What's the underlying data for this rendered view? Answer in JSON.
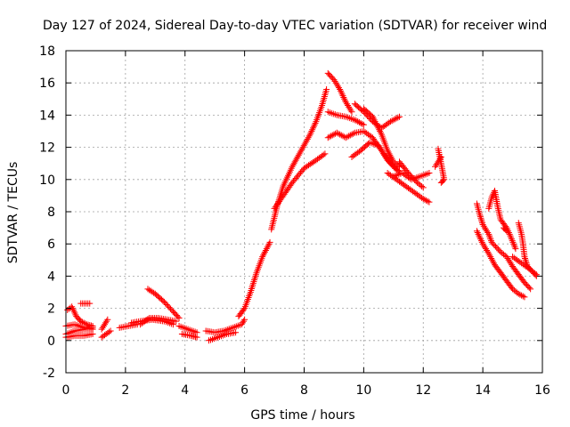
{
  "chart_data": {
    "type": "scatter",
    "title": "Day 127 of 2024, Sidereal Day-to-day VTEC variation (SDTVAR) for receiver wind",
    "xlabel": "GPS time / hours",
    "ylabel": "SDTVAR / TECUs",
    "xlim": [
      0,
      16
    ],
    "ylim": [
      -2,
      18
    ],
    "xticks": [
      "0",
      "2",
      "4",
      "6",
      "8",
      "10",
      "12",
      "14",
      "16"
    ],
    "yticks": [
      "-2",
      "0",
      "2",
      "4",
      "6",
      "8",
      "10",
      "12",
      "14",
      "16",
      "18"
    ],
    "grid": true,
    "marker": "+",
    "series": [
      {
        "name": "SDTVAR",
        "color": "#ff0000",
        "tracks": [
          [
            [
              0.0,
              0.4
            ],
            [
              0.3,
              0.6
            ],
            [
              0.6,
              0.7
            ],
            [
              0.9,
              0.8
            ]
          ],
          [
            [
              0.0,
              0.2
            ],
            [
              0.3,
              0.3
            ],
            [
              0.6,
              0.3
            ],
            [
              0.9,
              0.4
            ]
          ],
          [
            [
              0.0,
              0.9
            ],
            [
              0.3,
              1.0
            ],
            [
              0.6,
              0.8
            ],
            [
              0.9,
              0.7
            ]
          ],
          [
            [
              0.05,
              1.9
            ],
            [
              0.2,
              2.1
            ],
            [
              0.35,
              1.5
            ],
            [
              0.5,
              1.2
            ],
            [
              0.7,
              1.0
            ],
            [
              0.9,
              0.9
            ]
          ],
          [
            [
              0.5,
              2.3
            ],
            [
              0.8,
              2.3
            ]
          ],
          [
            [
              1.2,
              0.7
            ],
            [
              1.3,
              1.0
            ],
            [
              1.4,
              1.3
            ]
          ],
          [
            [
              1.2,
              0.2
            ],
            [
              1.35,
              0.4
            ],
            [
              1.5,
              0.6
            ]
          ],
          [
            [
              1.8,
              0.8
            ],
            [
              2.1,
              0.9
            ],
            [
              2.4,
              1.0
            ]
          ],
          [
            [
              2.2,
              1.1
            ],
            [
              2.5,
              1.2
            ],
            [
              2.9,
              1.3
            ],
            [
              3.3,
              1.2
            ],
            [
              3.6,
              1.0
            ]
          ],
          [
            [
              2.5,
              1.0
            ],
            [
              2.8,
              1.4
            ],
            [
              3.1,
              1.4
            ],
            [
              3.4,
              1.3
            ],
            [
              3.7,
              1.2
            ]
          ],
          [
            [
              2.75,
              3.2
            ],
            [
              3.0,
              2.9
            ],
            [
              3.3,
              2.4
            ],
            [
              3.6,
              1.8
            ],
            [
              3.8,
              1.4
            ]
          ],
          [
            [
              3.8,
              0.9
            ],
            [
              4.1,
              0.7
            ],
            [
              4.4,
              0.5
            ]
          ],
          [
            [
              3.9,
              0.4
            ],
            [
              4.2,
              0.3
            ],
            [
              4.4,
              0.2
            ]
          ],
          [
            [
              4.7,
              0.6
            ],
            [
              5.0,
              0.5
            ],
            [
              5.3,
              0.6
            ],
            [
              5.6,
              0.8
            ],
            [
              5.9,
              1.0
            ],
            [
              6.0,
              1.3
            ]
          ],
          [
            [
              4.8,
              0.0
            ],
            [
              5.1,
              0.2
            ],
            [
              5.4,
              0.4
            ],
            [
              5.7,
              0.5
            ]
          ],
          [
            [
              5.8,
              1.5
            ],
            [
              6.0,
              2.0
            ],
            [
              6.2,
              3.0
            ],
            [
              6.4,
              4.2
            ],
            [
              6.6,
              5.2
            ],
            [
              6.85,
              6.1
            ]
          ],
          [
            [
              6.9,
              6.9
            ],
            [
              7.1,
              8.4
            ],
            [
              7.3,
              9.6
            ],
            [
              7.6,
              10.8
            ],
            [
              7.9,
              11.8
            ],
            [
              8.2,
              12.8
            ],
            [
              8.4,
              13.6
            ],
            [
              8.6,
              14.6
            ],
            [
              8.75,
              15.6
            ]
          ],
          [
            [
              7.0,
              8.2
            ],
            [
              7.3,
              9.0
            ],
            [
              7.6,
              9.8
            ],
            [
              8.0,
              10.7
            ],
            [
              8.4,
              11.2
            ],
            [
              8.7,
              11.6
            ]
          ],
          [
            [
              8.8,
              16.6
            ],
            [
              9.0,
              16.2
            ],
            [
              9.2,
              15.6
            ],
            [
              9.4,
              14.8
            ],
            [
              9.6,
              14.2
            ]
          ],
          [
            [
              8.8,
              14.2
            ],
            [
              9.1,
              14.0
            ],
            [
              9.4,
              13.9
            ],
            [
              9.7,
              13.7
            ],
            [
              10.0,
              13.4
            ]
          ],
          [
            [
              8.8,
              12.6
            ],
            [
              9.1,
              12.9
            ],
            [
              9.4,
              12.6
            ],
            [
              9.7,
              12.9
            ],
            [
              10.0,
              13.0
            ],
            [
              10.3,
              12.6
            ],
            [
              10.6,
              11.8
            ],
            [
              10.9,
              11.0
            ],
            [
              11.2,
              10.5
            ]
          ],
          [
            [
              9.6,
              11.4
            ],
            [
              9.9,
              11.8
            ],
            [
              10.2,
              12.3
            ],
            [
              10.5,
              12.1
            ],
            [
              10.8,
              11.2
            ],
            [
              11.1,
              10.6
            ]
          ],
          [
            [
              9.7,
              14.7
            ],
            [
              10.0,
              14.2
            ],
            [
              10.3,
              13.6
            ],
            [
              10.6,
              13.2
            ],
            [
              10.9,
              13.6
            ],
            [
              11.2,
              13.9
            ]
          ],
          [
            [
              10.0,
              14.4
            ],
            [
              10.3,
              13.9
            ],
            [
              10.6,
              12.8
            ],
            [
              10.8,
              11.8
            ],
            [
              11.0,
              11.1
            ],
            [
              11.2,
              10.8
            ]
          ],
          [
            [
              10.8,
              10.4
            ],
            [
              11.1,
              10.0
            ],
            [
              11.4,
              9.6
            ],
            [
              11.7,
              9.2
            ],
            [
              12.0,
              8.8
            ],
            [
              12.2,
              8.6
            ]
          ],
          [
            [
              11.0,
              10.2
            ],
            [
              11.3,
              10.4
            ],
            [
              11.6,
              10.0
            ],
            [
              11.9,
              10.2
            ],
            [
              12.2,
              10.4
            ]
          ],
          [
            [
              11.2,
              11.1
            ],
            [
              11.5,
              10.4
            ],
            [
              11.8,
              9.8
            ],
            [
              12.0,
              9.5
            ]
          ],
          [
            [
              12.5,
              11.9
            ],
            [
              12.6,
              11.0
            ],
            [
              12.7,
              10.0
            ],
            [
              12.6,
              9.8
            ]
          ],
          [
            [
              12.4,
              10.8
            ],
            [
              12.6,
              11.4
            ]
          ],
          [
            [
              13.8,
              8.5
            ],
            [
              13.9,
              7.8
            ],
            [
              14.0,
              7.2
            ],
            [
              14.2,
              6.6
            ],
            [
              14.3,
              6.1
            ],
            [
              14.6,
              5.5
            ],
            [
              14.8,
              5.2
            ],
            [
              15.0,
              4.6
            ],
            [
              15.2,
              4.1
            ],
            [
              15.4,
              3.6
            ],
            [
              15.6,
              3.2
            ]
          ],
          [
            [
              13.8,
              6.8
            ],
            [
              14.0,
              6.0
            ],
            [
              14.2,
              5.4
            ],
            [
              14.4,
              4.7
            ],
            [
              14.6,
              4.2
            ],
            [
              14.8,
              3.7
            ],
            [
              15.0,
              3.2
            ],
            [
              15.2,
              2.9
            ],
            [
              15.4,
              2.7
            ]
          ],
          [
            [
              14.2,
              8.2
            ],
            [
              14.3,
              8.9
            ],
            [
              14.4,
              9.3
            ],
            [
              14.5,
              8.3
            ],
            [
              14.6,
              7.5
            ],
            [
              14.8,
              7.0
            ],
            [
              14.9,
              6.6
            ],
            [
              15.1,
              5.7
            ]
          ],
          [
            [
              14.7,
              7.0
            ],
            [
              14.8,
              6.8
            ]
          ],
          [
            [
              15.2,
              7.3
            ],
            [
              15.3,
              6.6
            ],
            [
              15.35,
              6.0
            ],
            [
              15.4,
              5.2
            ],
            [
              15.5,
              4.6
            ],
            [
              15.6,
              4.4
            ],
            [
              15.8,
              4.0
            ]
          ],
          [
            [
              15.0,
              5.2
            ],
            [
              15.3,
              4.8
            ],
            [
              15.6,
              4.4
            ],
            [
              15.8,
              4.1
            ]
          ]
        ]
      }
    ]
  }
}
